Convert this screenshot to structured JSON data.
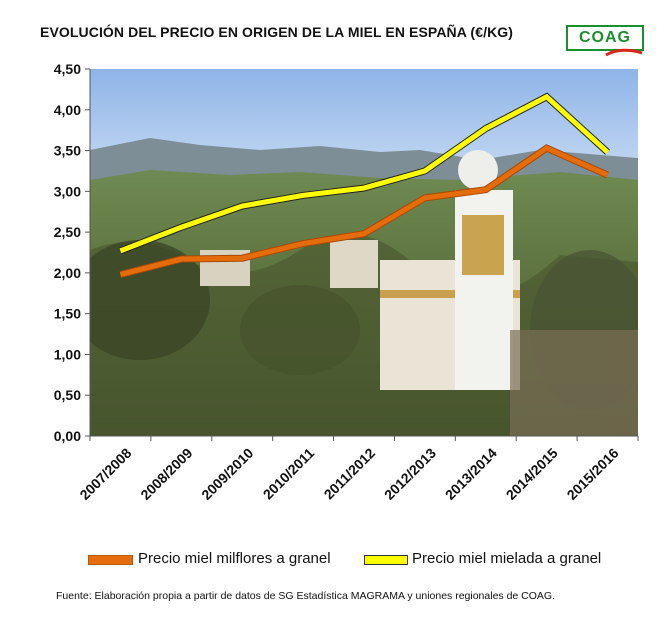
{
  "chart_data": {
    "type": "line",
    "title": "EVOLUCIÓN DEL PRECIO EN ORIGEN DE LA MIEL EN ESPAÑA (€/KG)",
    "categories": [
      "2007/2008",
      "2008/2009",
      "2009/2010",
      "2010/2011",
      "2011/2012",
      "2012/2013",
      "2013/2014",
      "2014/2015",
      "2015/2016"
    ],
    "y_ticks": [
      "0,00",
      "0,50",
      "1,00",
      "1,50",
      "2,00",
      "2,50",
      "3,00",
      "3,50",
      "4,00",
      "4,50"
    ],
    "ylim": [
      0,
      4.5
    ],
    "xlabel": "",
    "ylabel": "",
    "grid": false,
    "legend_position": "bottom",
    "series": [
      {
        "name": "Precio miel milflores a granel",
        "color": "#e46c0a",
        "values": [
          1.98,
          2.17,
          2.18,
          2.36,
          2.48,
          2.92,
          3.02,
          3.53,
          3.2
        ]
      },
      {
        "name": "Precio miel mielada a granel",
        "color": "#ffff00",
        "values": [
          2.27,
          2.56,
          2.82,
          2.95,
          3.04,
          3.25,
          3.77,
          4.16,
          3.48
        ]
      }
    ]
  },
  "logo": {
    "text": "COAG"
  },
  "source": "Fuente: Elaboración propia a partir de datos de SG Estadística MAGRAMA y uniones regionales de COAG."
}
